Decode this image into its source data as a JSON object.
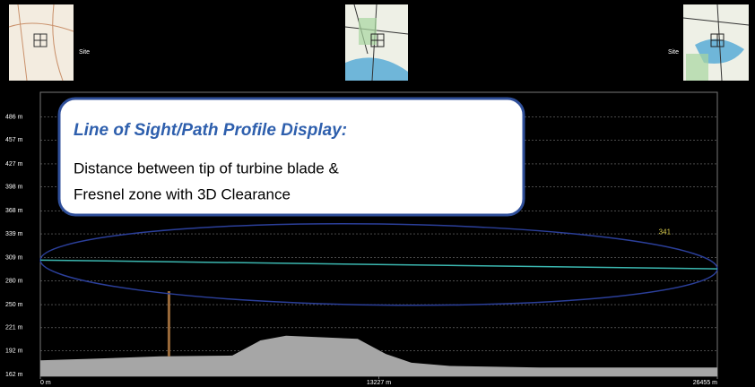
{
  "header": {
    "site_labels": [
      "Site",
      "Site"
    ]
  },
  "callout": {
    "title": "Line of Sight/Path Profile Display:",
    "lines": [
      "Distance between tip of turbine blade &",
      "Fresnel zone with 3D Clearance"
    ]
  },
  "chart_data": {
    "type": "area",
    "x": [
      0,
      2000,
      4700,
      7500,
      8600,
      9600,
      12400,
      13500,
      14500,
      16000,
      19500,
      23000,
      26455
    ],
    "values": [
      180,
      182,
      185,
      186,
      205,
      211,
      207,
      188,
      177,
      173,
      171,
      171,
      171
    ],
    "color": "#a6a6a6",
    "xlim": [
      0,
      26455
    ],
    "xticks": [
      {
        "value": 0,
        "label": "0 m"
      },
      {
        "value": 13227,
        "label": "13227 m"
      },
      {
        "value": 26455,
        "label": "26455 m"
      }
    ],
    "ylim": [
      160,
      517
    ],
    "yticks": [
      {
        "value": 486,
        "label": "486 m"
      },
      {
        "value": 457,
        "label": "457 m"
      },
      {
        "value": 427,
        "label": "427 m"
      },
      {
        "value": 398,
        "label": "398 m"
      },
      {
        "value": 368,
        "label": "368 m"
      },
      {
        "value": 339,
        "label": "339 m"
      },
      {
        "value": 309,
        "label": "309 m"
      },
      {
        "value": 280,
        "label": "280 m"
      },
      {
        "value": 250,
        "label": "250 m"
      },
      {
        "value": 221,
        "label": "221 m"
      },
      {
        "value": 192,
        "label": "192 m"
      },
      {
        "value": 162,
        "label": "162 m"
      }
    ],
    "grid": true,
    "line_of_sight": {
      "x": [
        0,
        26455
      ],
      "values": [
        306,
        295
      ],
      "color": "#3bb7b0"
    },
    "fresnel_radius": 51,
    "fresnel_color": "#2b3f9a",
    "turbine": {
      "x": 5025,
      "top": 267,
      "color": "#9a6a3a"
    },
    "annotation": {
      "x": 24400,
      "y": 341,
      "color": "#d6c94a"
    }
  }
}
